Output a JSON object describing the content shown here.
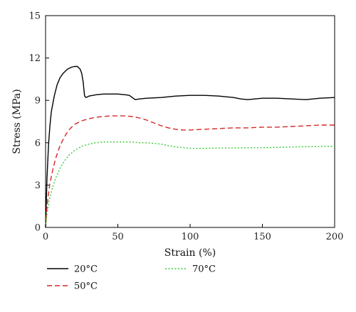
{
  "chart_data": {
    "type": "line",
    "title": "",
    "xlabel": "Strain (%)",
    "ylabel": "Stress (MPa)",
    "xlim": [
      0,
      200
    ],
    "ylim": [
      0,
      15
    ],
    "x_ticks": [
      0,
      50,
      100,
      150,
      200
    ],
    "y_ticks": [
      0,
      3,
      6,
      9,
      12,
      15
    ],
    "grid": false,
    "legend_position": "bottom",
    "series": [
      {
        "name": "20°C",
        "color": "#000000",
        "dash": "solid",
        "x": [
          0,
          1,
          2,
          3,
          4,
          6,
          8,
          10,
          12,
          15,
          18,
          20,
          22,
          24,
          25,
          26,
          27,
          28,
          30,
          35,
          40,
          45,
          50,
          55,
          58,
          60,
          62,
          65,
          70,
          80,
          90,
          100,
          110,
          120,
          130,
          135,
          140,
          145,
          150,
          160,
          170,
          180,
          190,
          200
        ],
        "y": [
          0,
          3.5,
          5.8,
          7.2,
          8.2,
          9.3,
          10.1,
          10.6,
          10.9,
          11.2,
          11.35,
          11.4,
          11.4,
          11.2,
          10.9,
          10.3,
          9.3,
          9.2,
          9.3,
          9.4,
          9.45,
          9.45,
          9.45,
          9.4,
          9.35,
          9.2,
          9.05,
          9.1,
          9.15,
          9.2,
          9.3,
          9.35,
          9.35,
          9.3,
          9.2,
          9.1,
          9.05,
          9.1,
          9.15,
          9.15,
          9.1,
          9.05,
          9.15,
          9.2
        ]
      },
      {
        "name": "50°C",
        "color": "#d62728",
        "dash": "dashed",
        "x": [
          0,
          1,
          2,
          3,
          5,
          7,
          10,
          13,
          16,
          20,
          25,
          30,
          35,
          40,
          45,
          50,
          55,
          60,
          65,
          70,
          75,
          80,
          85,
          90,
          95,
          100,
          110,
          120,
          130,
          140,
          150,
          160,
          170,
          180,
          190,
          200
        ],
        "y": [
          0,
          1.5,
          2.4,
          3.1,
          4.1,
          4.9,
          5.8,
          6.4,
          6.9,
          7.3,
          7.55,
          7.7,
          7.8,
          7.85,
          7.9,
          7.9,
          7.9,
          7.85,
          7.75,
          7.6,
          7.4,
          7.2,
          7.05,
          6.95,
          6.9,
          6.9,
          6.95,
          7.0,
          7.05,
          7.05,
          7.1,
          7.1,
          7.15,
          7.2,
          7.25,
          7.25
        ]
      },
      {
        "name": "70°C",
        "color": "#33cc33",
        "dash": "dotted",
        "x": [
          0,
          1,
          2,
          3,
          5,
          7,
          10,
          13,
          16,
          20,
          25,
          30,
          35,
          40,
          45,
          50,
          55,
          60,
          65,
          70,
          75,
          80,
          85,
          90,
          95,
          100,
          110,
          120,
          130,
          140,
          150,
          160,
          170,
          180,
          190,
          200
        ],
        "y": [
          0,
          1.0,
          1.6,
          2.1,
          2.9,
          3.5,
          4.2,
          4.7,
          5.1,
          5.45,
          5.75,
          5.9,
          6.0,
          6.05,
          6.05,
          6.05,
          6.05,
          6.05,
          6.0,
          6.0,
          5.95,
          5.9,
          5.8,
          5.7,
          5.65,
          5.6,
          5.6,
          5.62,
          5.63,
          5.65,
          5.65,
          5.67,
          5.7,
          5.72,
          5.73,
          5.75
        ]
      }
    ]
  }
}
